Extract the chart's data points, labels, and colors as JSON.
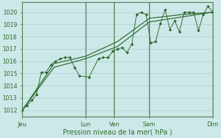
{
  "bg_color": "#cde8e8",
  "grid_color": "#b0cccc",
  "line_color": "#2d6a2d",
  "xlabel": "Pression niveau de la mer( hPa )",
  "ylim": [
    1011.5,
    1020.8
  ],
  "xlim": [
    0,
    10.0
  ],
  "series1_x": [
    0.0,
    0.25,
    0.5,
    0.75,
    1.0,
    1.25,
    1.5,
    1.75,
    2.0,
    2.25,
    2.5,
    2.75,
    3.0,
    3.5,
    4.0,
    4.25,
    4.5,
    4.75,
    5.0,
    5.25,
    5.5,
    5.75,
    6.0,
    6.25,
    6.5,
    6.75,
    7.0,
    7.25,
    7.5,
    7.75,
    8.0,
    8.25,
    8.5,
    8.75,
    9.0,
    9.25,
    9.5,
    9.75,
    10.0
  ],
  "series1_y": [
    1012.0,
    1012.4,
    1012.8,
    1013.3,
    1015.1,
    1015.1,
    1015.7,
    1016.0,
    1016.2,
    1016.3,
    1016.3,
    1015.5,
    1014.8,
    1014.7,
    1016.2,
    1016.3,
    1016.3,
    1016.8,
    1017.0,
    1017.1,
    1016.7,
    1017.4,
    1019.8,
    1020.0,
    1019.8,
    1017.5,
    1017.6,
    1019.1,
    1020.2,
    1018.6,
    1019.3,
    1018.4,
    1020.0,
    1020.0,
    1020.0,
    1018.5,
    1019.8,
    1020.5,
    1020.0
  ],
  "series2_x": [
    0.0,
    1.67,
    3.33,
    5.0,
    6.67,
    8.33,
    10.0
  ],
  "series2_y": [
    1012.0,
    1015.5,
    1016.2,
    1017.2,
    1019.2,
    1019.6,
    1020.0
  ],
  "series3_x": [
    0.0,
    1.67,
    3.33,
    5.0,
    6.67,
    8.33,
    10.0
  ],
  "series3_y": [
    1012.0,
    1015.8,
    1016.4,
    1017.6,
    1019.5,
    1019.8,
    1020.0
  ],
  "xtick_positions": [
    0.0,
    3.33,
    4.83,
    6.67,
    10.0
  ],
  "xtick_labels": [
    "Jeu",
    "Lun",
    "Ven",
    "Sam",
    "Dim"
  ],
  "yticks": [
    1012,
    1013,
    1014,
    1015,
    1016,
    1017,
    1018,
    1019,
    1020
  ],
  "vline_positions": [
    3.33,
    4.83,
    6.67,
    10.0
  ],
  "xlabel_fontsize": 7,
  "tick_fontsize": 6
}
